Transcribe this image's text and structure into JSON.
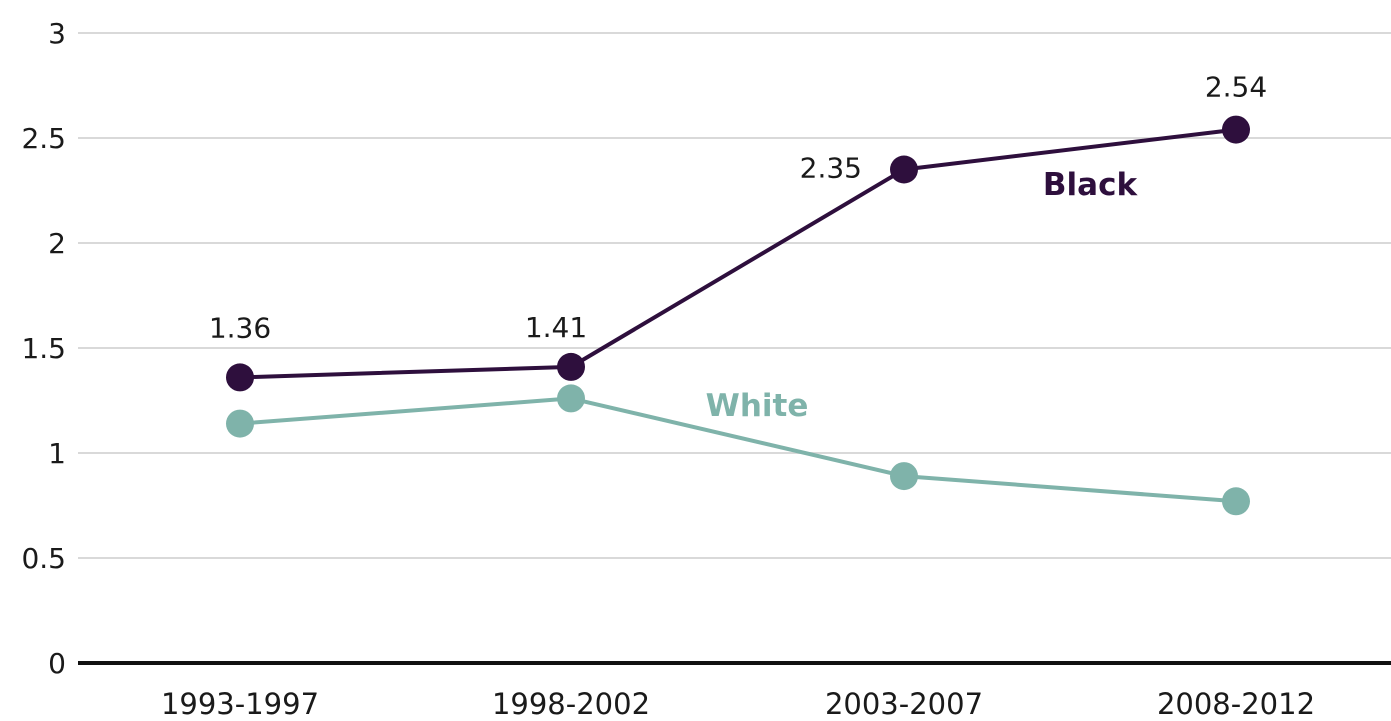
{
  "chart_data": {
    "type": "line",
    "categories": [
      "1993-1997",
      "1998-2002",
      "2003-2007",
      "2008-2012"
    ],
    "ylim": [
      0,
      3
    ],
    "yticks": [
      0,
      0.5,
      1,
      1.5,
      2,
      2.5,
      3
    ],
    "ytick_labels": [
      "0",
      "0.5",
      "1",
      "1.5",
      "2",
      "2.5",
      "3"
    ],
    "grid": true,
    "xlabel": "",
    "ylabel": "",
    "series": [
      {
        "name": "Black",
        "color": "#2e0f3d",
        "values": [
          1.36,
          1.41,
          2.35,
          2.54
        ],
        "data_labels": [
          "1.36",
          "1.41",
          "2.35",
          "2.54"
        ]
      },
      {
        "name": "White",
        "color": "#7fb3aa",
        "values": [
          1.14,
          1.26,
          0.89,
          0.77
        ],
        "data_labels": []
      }
    ]
  }
}
